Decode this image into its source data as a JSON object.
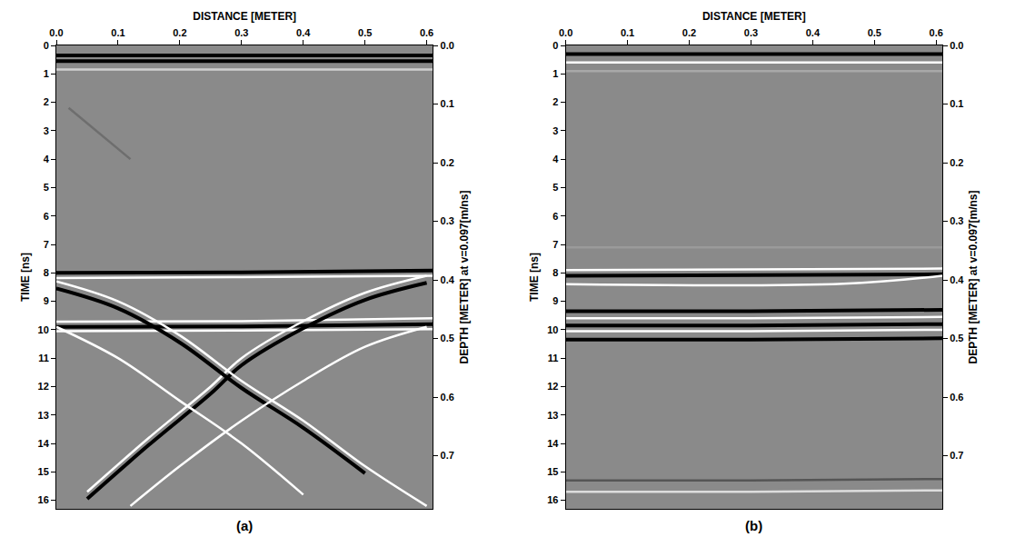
{
  "chart_data": [
    {
      "type": "line",
      "title": "(a)",
      "xlabel": "DISTANCE [METER]",
      "ylabel": "TIME [ns]",
      "y2label": "DEPTH [METER] at v=0.097[m/ns]",
      "xlim": [
        0,
        0.61
      ],
      "xticks": [
        {
          "value": 0,
          "label": "0.0"
        },
        {
          "value": 0.1,
          "label": "0.1"
        },
        {
          "value": 0.2,
          "label": "0.2"
        },
        {
          "value": 0.3,
          "label": "0.3"
        },
        {
          "value": 0.4,
          "label": "0.4"
        },
        {
          "value": 0.5,
          "label": "0.5"
        },
        {
          "value": 0.6,
          "label": "0.6"
        }
      ],
      "ylim": [
        16.3,
        0
      ],
      "yticks": [
        0,
        1,
        2,
        3,
        4,
        5,
        6,
        7,
        8,
        9,
        10,
        11,
        12,
        13,
        14,
        15,
        16
      ],
      "y2lim": [
        0.7906,
        0
      ],
      "y2ticks": [
        {
          "value": 0,
          "label": "0.0"
        },
        {
          "value": 0.1,
          "label": "0.1"
        },
        {
          "value": 0.2,
          "label": "0.2"
        },
        {
          "value": 0.3,
          "label": "0.3"
        },
        {
          "value": 0.4,
          "label": "0.4"
        },
        {
          "value": 0.5,
          "label": "0.5"
        },
        {
          "value": 0.6,
          "label": "0.6"
        },
        {
          "value": 0.7,
          "label": "0.7"
        }
      ],
      "grid": false,
      "series": [
        {
          "color": "#000000",
          "x": [
            0,
            0.3,
            0.61
          ],
          "values": [
            0.35,
            0.35,
            0.35
          ]
        },
        {
          "color": "#000000",
          "x": [
            0,
            0.3,
            0.61
          ],
          "values": [
            0.55,
            0.55,
            0.55
          ]
        },
        {
          "color": "#d0d0d0",
          "x": [
            0,
            0.3,
            0.61
          ],
          "values": [
            0.85,
            0.85,
            0.85
          ]
        },
        {
          "color": "#000000",
          "x": [
            0,
            0.3,
            0.61
          ],
          "values": [
            8.0,
            7.98,
            7.92
          ]
        },
        {
          "color": "#ffffff",
          "x": [
            0,
            0.3,
            0.61
          ],
          "values": [
            8.18,
            8.15,
            8.1
          ]
        },
        {
          "color": "#ffffff",
          "x": [
            0,
            0.3,
            0.61
          ],
          "values": [
            9.72,
            9.7,
            9.6
          ]
        },
        {
          "color": "#000000",
          "x": [
            0,
            0.3,
            0.61
          ],
          "values": [
            9.9,
            9.88,
            9.8
          ]
        },
        {
          "color": "#ffffff",
          "x": [
            0,
            0.3,
            0.61
          ],
          "values": [
            10.05,
            10.03,
            9.98
          ]
        },
        {
          "color": "#ffffff",
          "x": [
            0.6,
            0.5,
            0.4,
            0.3,
            0.25,
            0.15,
            0.05
          ],
          "values": [
            8.1,
            8.7,
            9.7,
            11.0,
            12.0,
            13.8,
            15.7
          ]
        },
        {
          "color": "#000000",
          "x": [
            0.6,
            0.5,
            0.4,
            0.3,
            0.25,
            0.15,
            0.05
          ],
          "values": [
            8.35,
            8.95,
            9.95,
            11.25,
            12.25,
            14.05,
            15.95
          ]
        },
        {
          "color": "#ffffff",
          "x": [
            0,
            0.1,
            0.2,
            0.3,
            0.4,
            0.5,
            0.6
          ],
          "values": [
            8.3,
            9.0,
            10.2,
            11.8,
            13.2,
            14.8,
            16.2
          ]
        },
        {
          "color": "#000000",
          "x": [
            0,
            0.1,
            0.2,
            0.3,
            0.4,
            0.5
          ],
          "values": [
            8.55,
            9.25,
            10.45,
            12.05,
            13.45,
            15.05
          ]
        },
        {
          "color": "#ffffff",
          "x": [
            0,
            0.1,
            0.2,
            0.3,
            0.4
          ],
          "values": [
            9.9,
            11.0,
            12.5,
            14.0,
            15.8
          ]
        },
        {
          "color": "#ffffff",
          "x": [
            0.6,
            0.5,
            0.4,
            0.3,
            0.2,
            0.12
          ],
          "values": [
            9.9,
            10.6,
            11.8,
            13.2,
            14.8,
            16.2
          ]
        },
        {
          "color": "#6e6e6e",
          "x": [
            0.02,
            0.12
          ],
          "values": [
            2.2,
            4.0
          ]
        }
      ]
    },
    {
      "type": "line",
      "title": "(b)",
      "xlabel": "DISTANCE [METER]",
      "ylabel": "TIME [ns]",
      "y2label": "DEPTH [METER] at v=0.097[m/ns]",
      "xlim": [
        0,
        0.61
      ],
      "xticks": [
        {
          "value": 0,
          "label": "0.0"
        },
        {
          "value": 0.1,
          "label": "0.1"
        },
        {
          "value": 0.2,
          "label": "0.2"
        },
        {
          "value": 0.3,
          "label": "0.3"
        },
        {
          "value": 0.4,
          "label": "0.4"
        },
        {
          "value": 0.5,
          "label": "0.5"
        },
        {
          "value": 0.6,
          "label": "0.6"
        }
      ],
      "ylim": [
        16.3,
        0
      ],
      "yticks": [
        0,
        1,
        2,
        3,
        4,
        5,
        6,
        7,
        8,
        9,
        10,
        11,
        12,
        13,
        14,
        15,
        16
      ],
      "y2lim": [
        0.7906,
        0
      ],
      "y2ticks": [
        {
          "value": 0,
          "label": "0.0"
        },
        {
          "value": 0.1,
          "label": "0.1"
        },
        {
          "value": 0.2,
          "label": "0.2"
        },
        {
          "value": 0.3,
          "label": "0.3"
        },
        {
          "value": 0.4,
          "label": "0.4"
        },
        {
          "value": 0.5,
          "label": "0.5"
        },
        {
          "value": 0.6,
          "label": "0.6"
        },
        {
          "value": 0.7,
          "label": "0.7"
        }
      ],
      "grid": false,
      "series": [
        {
          "color": "#000000",
          "x": [
            0,
            0.3,
            0.61
          ],
          "values": [
            0.3,
            0.3,
            0.3
          ]
        },
        {
          "color": "#ffffff",
          "x": [
            0,
            0.3,
            0.61
          ],
          "values": [
            0.6,
            0.6,
            0.6
          ]
        },
        {
          "color": "#a8a8a8",
          "x": [
            0,
            0.3,
            0.61
          ],
          "values": [
            0.9,
            0.9,
            0.9
          ]
        },
        {
          "color": "#9a9a9a",
          "x": [
            0,
            0.3,
            0.61
          ],
          "values": [
            7.1,
            7.1,
            7.1
          ]
        },
        {
          "color": "#ffffff",
          "x": [
            0,
            0.3,
            0.61
          ],
          "values": [
            7.9,
            7.88,
            7.85
          ]
        },
        {
          "color": "#000000",
          "x": [
            0,
            0.3,
            0.61
          ],
          "values": [
            8.1,
            8.08,
            8.05
          ]
        },
        {
          "color": "#ffffff",
          "x": [
            0,
            0.45,
            0.61
          ],
          "values": [
            8.4,
            8.38,
            8.1
          ]
        },
        {
          "color": "#000000",
          "x": [
            0,
            0.3,
            0.61
          ],
          "values": [
            9.35,
            9.35,
            9.3
          ]
        },
        {
          "color": "#ffffff",
          "x": [
            0,
            0.3,
            0.61
          ],
          "values": [
            9.6,
            9.6,
            9.55
          ]
        },
        {
          "color": "#000000",
          "x": [
            0,
            0.3,
            0.61
          ],
          "values": [
            9.85,
            9.85,
            9.8
          ]
        },
        {
          "color": "#ffffff",
          "x": [
            0,
            0.3,
            0.61
          ],
          "values": [
            10.05,
            10.05,
            10.0
          ]
        },
        {
          "color": "#000000",
          "x": [
            0,
            0.3,
            0.61
          ],
          "values": [
            10.35,
            10.35,
            10.3
          ]
        },
        {
          "color": "#555555",
          "x": [
            0,
            0.3,
            0.61
          ],
          "values": [
            15.3,
            15.3,
            15.25
          ]
        },
        {
          "color": "#dddddd",
          "x": [
            0,
            0.3,
            0.61
          ],
          "values": [
            15.7,
            15.7,
            15.65
          ]
        }
      ]
    }
  ]
}
